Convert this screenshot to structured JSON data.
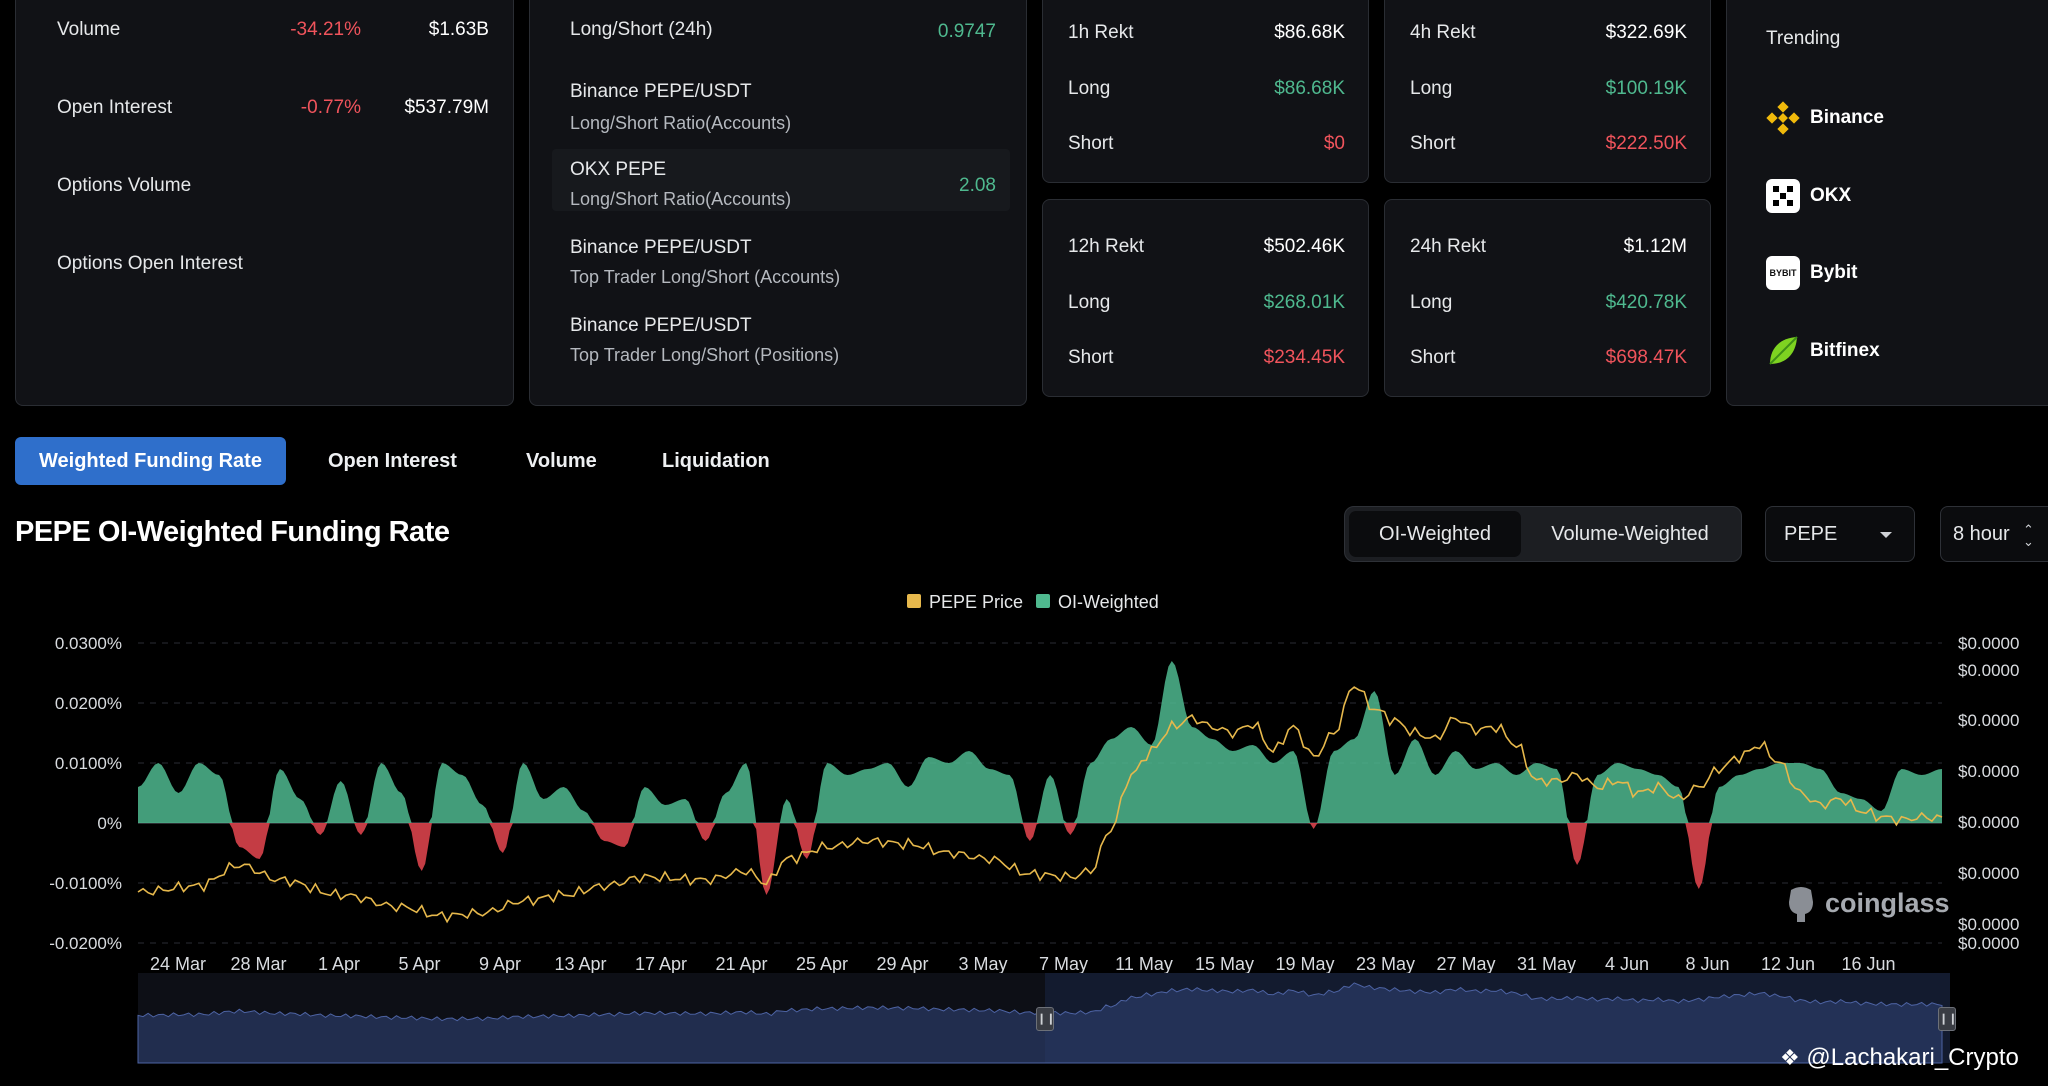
{
  "stats_card": {
    "rows": [
      {
        "label": "Volume",
        "change": "-34.21%",
        "value": "$1.63B"
      },
      {
        "label": "Open Interest",
        "change": "-0.77%",
        "value": "$537.79M"
      },
      {
        "label": "Options Volume"
      },
      {
        "label": "Options Open Interest"
      }
    ]
  },
  "ratio_card": {
    "title": "Long/Short (24h)",
    "title_value": "0.9747",
    "items": [
      {
        "name": "Binance PEPE/USDT",
        "sub": "Long/Short Ratio(Accounts)",
        "value": ""
      },
      {
        "name": "OKX PEPE",
        "sub": "Long/Short Ratio(Accounts)",
        "value": "2.08"
      },
      {
        "name": "Binance PEPE/USDT",
        "sub": "Top Trader Long/Short (Accounts)",
        "value": ""
      },
      {
        "name": "Binance PEPE/USDT",
        "sub": "Top Trader Long/Short (Positions)",
        "value": ""
      }
    ]
  },
  "rekt": [
    {
      "title": "1h Rekt",
      "total": "$86.68K",
      "long_label": "Long",
      "long": "$86.68K",
      "short_label": "Short",
      "short": "$0"
    },
    {
      "title": "4h Rekt",
      "total": "$322.69K",
      "long_label": "Long",
      "long": "$100.19K",
      "short_label": "Short",
      "short": "$222.50K"
    },
    {
      "title": "12h Rekt",
      "total": "$502.46K",
      "long_label": "Long",
      "long": "$268.01K",
      "short_label": "Short",
      "short": "$234.45K"
    },
    {
      "title": "24h Rekt",
      "total": "$1.12M",
      "long_label": "Long",
      "long": "$420.78K",
      "short_label": "Short",
      "short": "$698.47K"
    }
  ],
  "trending": {
    "title": "Trending",
    "items": [
      {
        "name": "Binance",
        "icon": "binance-icon"
      },
      {
        "name": "OKX",
        "icon": "okx-icon"
      },
      {
        "name": "Bybit",
        "icon": "bybit-icon",
        "icon_text": "BYBIT"
      },
      {
        "name": "Bitfinex",
        "icon": "bitfinex-icon"
      }
    ]
  },
  "tabs": [
    "Weighted Funding Rate",
    "Open Interest",
    "Volume",
    "Liquidation"
  ],
  "active_tab": 0,
  "section_title": "PEPE OI-Weighted Funding Rate",
  "weight_toggle": {
    "options": [
      "OI-Weighted",
      "Volume-Weighted"
    ],
    "selected": "OI-Weighted"
  },
  "symbol_select": {
    "value": "PEPE"
  },
  "interval_select": {
    "value": "8 hour"
  },
  "colors": {
    "accent": "#2f6fcb",
    "positive": "#4fb98f",
    "negative": "#f0545c",
    "price_line": "#e6b84c",
    "card_bg": "#111216"
  },
  "chart_data": {
    "type": "area",
    "legend": [
      {
        "name": "PEPE Price",
        "color": "#e6b84c"
      },
      {
        "name": "OI-Weighted",
        "color": "#4fb98f"
      }
    ],
    "legend_position": "top-center",
    "y_left_ticks": [
      "0.0300%",
      "0.0200%",
      "0.0100%",
      "0%",
      "-0.0100%",
      "-0.0200%"
    ],
    "y_left_range": [
      -0.02,
      0.03
    ],
    "y_right_ticks": [
      "$0.0000",
      "$0.0000",
      "$0.0000",
      "$0.0000",
      "$0.0000",
      "$0.0000",
      "$0.0000",
      "$0.0000"
    ],
    "x_labels": [
      "24 Mar",
      "28 Mar",
      "1 Apr",
      "5 Apr",
      "9 Apr",
      "13 Apr",
      "17 Apr",
      "21 Apr",
      "25 Apr",
      "29 Apr",
      "3 May",
      "7 May",
      "11 May",
      "15 May",
      "19 May",
      "23 May",
      "27 May",
      "31 May",
      "4 Jun",
      "8 Jun",
      "12 Jun",
      "16 Jun"
    ],
    "funding_keys": [
      [
        0,
        0.006
      ],
      [
        1,
        0.01
      ],
      [
        2,
        0.005
      ],
      [
        3,
        0.01
      ],
      [
        4,
        0.008
      ],
      [
        5,
        -0.004
      ],
      [
        6,
        -0.006
      ],
      [
        7,
        0.009
      ],
      [
        8,
        0.004
      ],
      [
        9,
        -0.002
      ],
      [
        10,
        0.007
      ],
      [
        11,
        -0.002
      ],
      [
        12,
        0.01
      ],
      [
        13,
        0.005
      ],
      [
        14,
        -0.008
      ],
      [
        15,
        0.01
      ],
      [
        16,
        0.008
      ],
      [
        17,
        0.003
      ],
      [
        18,
        -0.005
      ],
      [
        19,
        0.01
      ],
      [
        20,
        0.004
      ],
      [
        21,
        0.006
      ],
      [
        22,
        0.002
      ],
      [
        23,
        -0.003
      ],
      [
        24,
        -0.004
      ],
      [
        25,
        0.006
      ],
      [
        26,
        0.003
      ],
      [
        27,
        0.004
      ],
      [
        28,
        -0.003
      ],
      [
        29,
        0.005
      ],
      [
        30,
        0.01
      ],
      [
        31,
        -0.012
      ],
      [
        32,
        0.004
      ],
      [
        33,
        -0.006
      ],
      [
        34,
        0.01
      ],
      [
        35,
        0.008
      ],
      [
        36,
        0.009
      ],
      [
        37,
        0.01
      ],
      [
        38,
        0.006
      ],
      [
        39,
        0.011
      ],
      [
        40,
        0.01
      ],
      [
        41,
        0.012
      ],
      [
        42,
        0.009
      ],
      [
        43,
        0.008
      ],
      [
        44,
        -0.003
      ],
      [
        45,
        0.008
      ],
      [
        46,
        -0.002
      ],
      [
        47,
        0.01
      ],
      [
        48,
        0.014
      ],
      [
        49,
        0.016
      ],
      [
        50,
        0.013
      ],
      [
        51,
        0.027
      ],
      [
        52,
        0.016
      ],
      [
        53,
        0.014
      ],
      [
        54,
        0.012
      ],
      [
        55,
        0.013
      ],
      [
        56,
        0.01
      ],
      [
        57,
        0.012
      ],
      [
        58,
        -0.001
      ],
      [
        59,
        0.012
      ],
      [
        60,
        0.014
      ],
      [
        61,
        0.022
      ],
      [
        62,
        0.008
      ],
      [
        63,
        0.014
      ],
      [
        64,
        0.008
      ],
      [
        65,
        0.012
      ],
      [
        66,
        0.009
      ],
      [
        67,
        0.01
      ],
      [
        68,
        0.008
      ],
      [
        69,
        0.01
      ],
      [
        70,
        0.009
      ],
      [
        71,
        -0.007
      ],
      [
        72,
        0.008
      ],
      [
        73,
        0.01
      ],
      [
        74,
        0.009
      ],
      [
        75,
        0.008
      ],
      [
        76,
        0.006
      ],
      [
        77,
        -0.011
      ],
      [
        78,
        0.006
      ],
      [
        79,
        0.008
      ],
      [
        80,
        0.009
      ],
      [
        81,
        0.01
      ],
      [
        82,
        0.01
      ],
      [
        83,
        0.009
      ],
      [
        84,
        0.005
      ],
      [
        85,
        0.004
      ],
      [
        86,
        0.002
      ],
      [
        87,
        0.009
      ],
      [
        88,
        0.008
      ],
      [
        89,
        0.009
      ]
    ],
    "price_keys": [
      [
        0,
        -0.0115
      ],
      [
        3,
        -0.0105
      ],
      [
        5,
        -0.007
      ],
      [
        7,
        -0.0095
      ],
      [
        10,
        -0.012
      ],
      [
        13,
        -0.014
      ],
      [
        15,
        -0.0155
      ],
      [
        17,
        -0.015
      ],
      [
        19,
        -0.013
      ],
      [
        21,
        -0.012
      ],
      [
        23,
        -0.0105
      ],
      [
        25,
        -0.009
      ],
      [
        28,
        -0.0095
      ],
      [
        30,
        -0.008
      ],
      [
        31,
        -0.01
      ],
      [
        32,
        -0.006
      ],
      [
        34,
        -0.004
      ],
      [
        36,
        -0.003
      ],
      [
        38,
        -0.0035
      ],
      [
        40,
        -0.005
      ],
      [
        42,
        -0.006
      ],
      [
        44,
        -0.0085
      ],
      [
        46,
        -0.009
      ],
      [
        47,
        -0.008
      ],
      [
        48,
        -0.001
      ],
      [
        49,
        0.008
      ],
      [
        50,
        0.012
      ],
      [
        51,
        0.016
      ],
      [
        52,
        0.0175
      ],
      [
        53,
        0.016
      ],
      [
        54,
        0.015
      ],
      [
        55,
        0.0165
      ],
      [
        56,
        0.012
      ],
      [
        57,
        0.016
      ],
      [
        58,
        0.011
      ],
      [
        59,
        0.015
      ],
      [
        60,
        0.023
      ],
      [
        61,
        0.019
      ],
      [
        62,
        0.017
      ],
      [
        63,
        0.015
      ],
      [
        64,
        0.014
      ],
      [
        65,
        0.0175
      ],
      [
        66,
        0.0155
      ],
      [
        67,
        0.016
      ],
      [
        68,
        0.013
      ],
      [
        69,
        0.007
      ],
      [
        70,
        0.007
      ],
      [
        71,
        0.008
      ],
      [
        72,
        0.006
      ],
      [
        73,
        0.007
      ],
      [
        74,
        0.005
      ],
      [
        75,
        0.006
      ],
      [
        76,
        0.004
      ],
      [
        77,
        0.006
      ],
      [
        78,
        0.009
      ],
      [
        79,
        0.011
      ],
      [
        80,
        0.013
      ],
      [
        81,
        0.01
      ],
      [
        82,
        0.005
      ],
      [
        83,
        0.003
      ],
      [
        84,
        0.004
      ],
      [
        85,
        0.002
      ],
      [
        86,
        0.001
      ],
      [
        87,
        0.0005
      ],
      [
        88,
        0.001
      ],
      [
        89,
        0.0008
      ]
    ]
  },
  "watermark": {
    "brand": "coinglass",
    "handle": "@Lachakari_Crypto"
  }
}
